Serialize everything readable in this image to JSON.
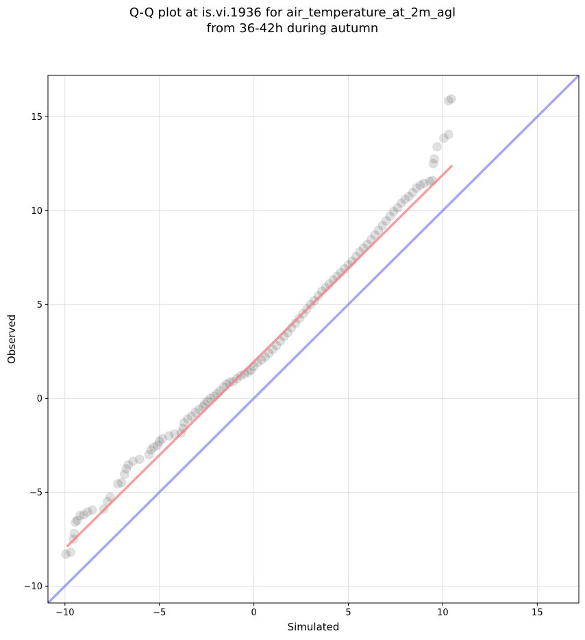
{
  "chart_data": {
    "type": "scatter",
    "title_line1": "Q-Q plot at is.vi.1936 for air_temperature_at_2m_agl",
    "title_line2": "from 36-42h during autumn",
    "xlabel": "Simulated",
    "ylabel": "Observed",
    "xlim": [
      -10.9,
      17.2
    ],
    "ylim": [
      -10.9,
      17.2
    ],
    "xticks": [
      -10,
      -5,
      0,
      5,
      10,
      15
    ],
    "yticks": [
      -10,
      -5,
      0,
      5,
      10,
      15
    ],
    "xtick_labels": [
      "−10",
      "−5",
      "0",
      "5",
      "10",
      "15"
    ],
    "ytick_labels": [
      "−10",
      "−5",
      "0",
      "5",
      "10",
      "15"
    ],
    "grid": true,
    "colors": {
      "points": "#000000",
      "fit_line": "#f08080",
      "identity_line": "#8080f0",
      "grid": "#e0e0e0"
    },
    "quantiles": [
      [
        -9.95,
        -8.3
      ],
      [
        -9.7,
        -8.2
      ],
      [
        -9.55,
        -7.5
      ],
      [
        -9.5,
        -7.2
      ],
      [
        -9.45,
        -6.6
      ],
      [
        -9.35,
        -6.5
      ],
      [
        -9.2,
        -6.25
      ],
      [
        -9.0,
        -6.2
      ],
      [
        -8.8,
        -6.05
      ],
      [
        -8.55,
        -5.95
      ],
      [
        -7.95,
        -5.9
      ],
      [
        -7.75,
        -5.5
      ],
      [
        -7.6,
        -5.25
      ],
      [
        -7.2,
        -4.55
      ],
      [
        -7.0,
        -4.5
      ],
      [
        -6.85,
        -4.05
      ],
      [
        -6.75,
        -3.75
      ],
      [
        -6.65,
        -3.55
      ],
      [
        -6.4,
        -3.35
      ],
      [
        -6.05,
        -3.25
      ],
      [
        -5.55,
        -3.0
      ],
      [
        -5.45,
        -2.75
      ],
      [
        -5.3,
        -2.6
      ],
      [
        -5.1,
        -2.5
      ],
      [
        -5.0,
        -2.3
      ],
      [
        -4.85,
        -2.15
      ],
      [
        -4.5,
        -2.0
      ],
      [
        -4.2,
        -1.9
      ],
      [
        -3.85,
        -1.85
      ],
      [
        -3.75,
        -1.6
      ],
      [
        -3.7,
        -1.3
      ],
      [
        -3.5,
        -1.1
      ],
      [
        -3.3,
        -0.95
      ],
      [
        -3.1,
        -0.75
      ],
      [
        -2.9,
        -0.6
      ],
      [
        -2.7,
        -0.45
      ],
      [
        -2.6,
        -0.3
      ],
      [
        -2.45,
        -0.15
      ],
      [
        -2.3,
        0.0
      ],
      [
        -2.1,
        0.1
      ],
      [
        -1.95,
        0.25
      ],
      [
        -1.8,
        0.4
      ],
      [
        -1.6,
        0.6
      ],
      [
        -1.45,
        0.75
      ],
      [
        -1.3,
        0.85
      ],
      [
        -1.1,
        0.9
      ],
      [
        -0.9,
        1.05
      ],
      [
        -0.7,
        1.2
      ],
      [
        -0.5,
        1.3
      ],
      [
        -0.3,
        1.4
      ],
      [
        -0.15,
        1.5
      ],
      [
        0.0,
        1.7
      ],
      [
        0.2,
        1.9
      ],
      [
        0.4,
        2.05
      ],
      [
        0.6,
        2.2
      ],
      [
        0.8,
        2.4
      ],
      [
        1.0,
        2.6
      ],
      [
        1.2,
        2.8
      ],
      [
        1.4,
        3.05
      ],
      [
        1.6,
        3.3
      ],
      [
        1.8,
        3.5
      ],
      [
        2.0,
        3.75
      ],
      [
        2.2,
        4.0
      ],
      [
        2.4,
        4.25
      ],
      [
        2.6,
        4.5
      ],
      [
        2.8,
        4.75
      ],
      [
        3.0,
        5.0
      ],
      [
        3.2,
        5.2
      ],
      [
        3.4,
        5.45
      ],
      [
        3.6,
        5.7
      ],
      [
        3.8,
        5.9
      ],
      [
        4.0,
        6.1
      ],
      [
        4.2,
        6.3
      ],
      [
        4.4,
        6.5
      ],
      [
        4.6,
        6.7
      ],
      [
        4.8,
        6.9
      ],
      [
        5.0,
        7.1
      ],
      [
        5.2,
        7.3
      ],
      [
        5.4,
        7.55
      ],
      [
        5.6,
        7.8
      ],
      [
        5.8,
        8.0
      ],
      [
        6.0,
        8.2
      ],
      [
        6.2,
        8.45
      ],
      [
        6.4,
        8.7
      ],
      [
        6.6,
        8.95
      ],
      [
        6.8,
        9.2
      ],
      [
        7.0,
        9.45
      ],
      [
        7.2,
        9.7
      ],
      [
        7.4,
        9.95
      ],
      [
        7.6,
        10.15
      ],
      [
        7.8,
        10.4
      ],
      [
        8.0,
        10.6
      ],
      [
        8.2,
        10.75
      ],
      [
        8.4,
        10.95
      ],
      [
        8.6,
        11.2
      ],
      [
        8.8,
        11.35
      ],
      [
        9.0,
        11.45
      ],
      [
        9.3,
        11.55
      ],
      [
        9.45,
        11.6
      ],
      [
        9.5,
        12.5
      ],
      [
        9.55,
        12.75
      ],
      [
        9.7,
        13.4
      ],
      [
        10.05,
        13.85
      ],
      [
        10.3,
        14.05
      ],
      [
        10.3,
        15.85
      ],
      [
        10.45,
        15.95
      ]
    ],
    "fit_line": {
      "x": [
        -9.9,
        10.5
      ],
      "y": [
        -7.9,
        12.4
      ]
    },
    "identity_line": {
      "x": [
        -10.9,
        17.2
      ],
      "y": [
        -10.9,
        17.2
      ]
    }
  }
}
